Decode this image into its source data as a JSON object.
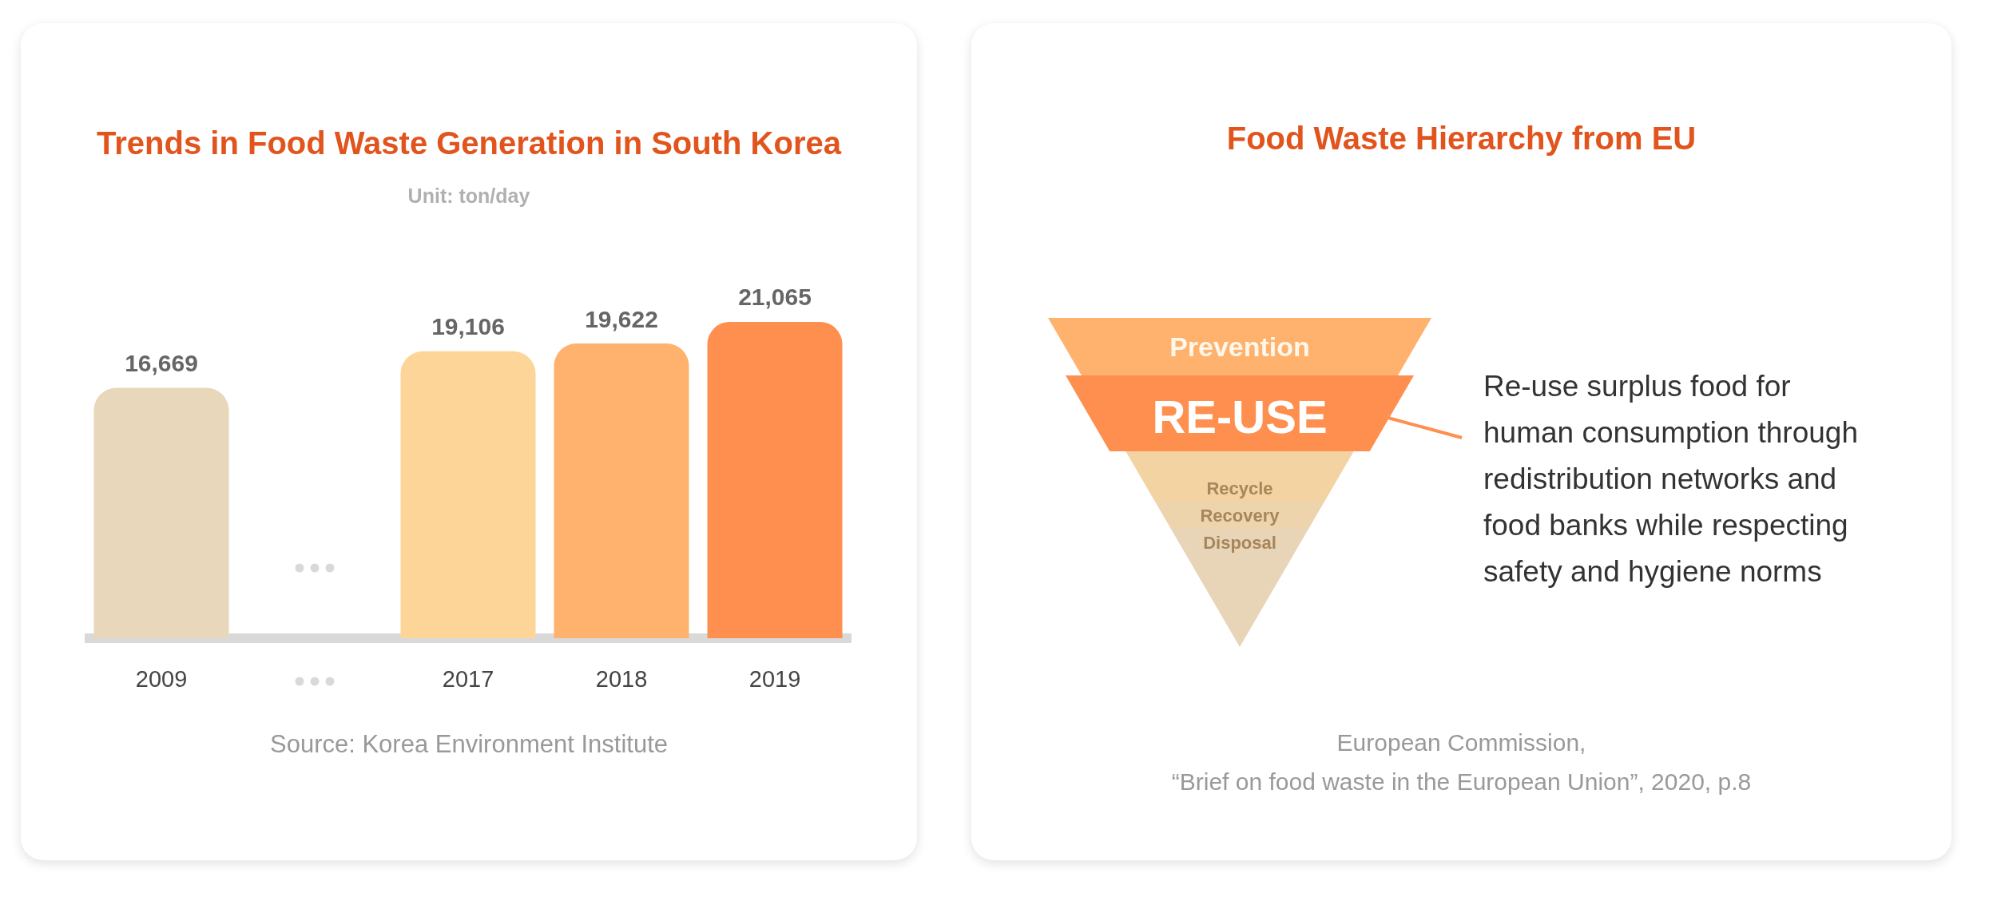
{
  "chart_data": [
    {
      "type": "bar",
      "title": "Trends in Food Waste Generation in South Korea",
      "subtitle": "Unit: ton/day",
      "categories": [
        "2009",
        null,
        "2017",
        "2018",
        "2019"
      ],
      "values": [
        16669,
        null,
        19106,
        19622,
        21065
      ],
      "colors": [
        "#e8d7bb",
        "#e8d7bb",
        "#fdd598",
        "#feb26e",
        "#fe8f4f"
      ],
      "value_labels": [
        "16,669",
        null,
        "19,106",
        "19,622",
        "21,065"
      ],
      "annotations": [
        "Source: Korea Environment Institute"
      ]
    },
    {
      "type": "other",
      "title": "Food Waste Hierarchy from EU",
      "categories": [
        "Prevention",
        "RE-USE",
        "Recycle",
        "Recovery",
        "Disposal"
      ],
      "colors": [
        "#feb26e",
        "#fe8f4f",
        "#f4d3a2",
        "#eed4ad",
        "#e8d5b8"
      ],
      "annotations": [
        "Re-use surplus food for human consumption through redistribution networks and food banks while respecting safety and hygiene norms",
        "European Commission,\n“Brief on food waste in the European Union”, 2020, p.8"
      ]
    }
  ]
}
